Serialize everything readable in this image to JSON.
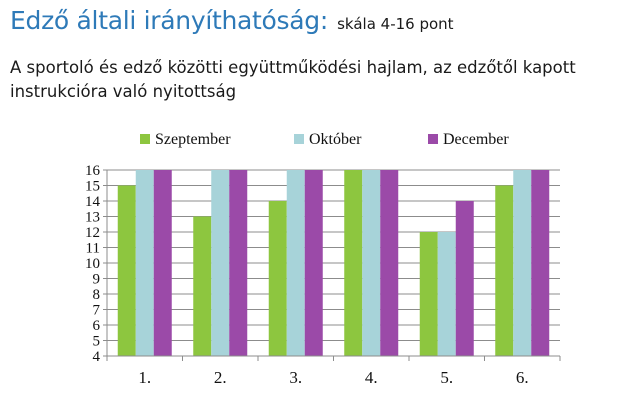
{
  "title": {
    "main": "Edző általi irányíthatóság:",
    "scale": "skála 4-16 pont"
  },
  "subtitle": "A sportoló és edző közötti együttműködési hajlam, az edzőtől kapott instrukcióra való nyitottság",
  "chart_data": {
    "type": "bar",
    "categories": [
      "1.",
      "2.",
      "3.",
      "4.",
      "5.",
      "6."
    ],
    "series": [
      {
        "name": "Szeptember",
        "values": [
          15,
          13,
          14,
          16,
          12,
          15
        ],
        "color": "#8dc63f"
      },
      {
        "name": "Október",
        "values": [
          16,
          16,
          16,
          16,
          12,
          16
        ],
        "color": "#a7d3d9"
      },
      {
        "name": "December",
        "values": [
          16,
          16,
          16,
          16,
          14,
          16
        ],
        "color": "#9b4aa8"
      }
    ],
    "ylim": [
      4,
      16
    ],
    "yticks": [
      4,
      5,
      6,
      7,
      8,
      9,
      10,
      11,
      12,
      13,
      14,
      15,
      16
    ],
    "grid": true,
    "legend_position": "top"
  }
}
